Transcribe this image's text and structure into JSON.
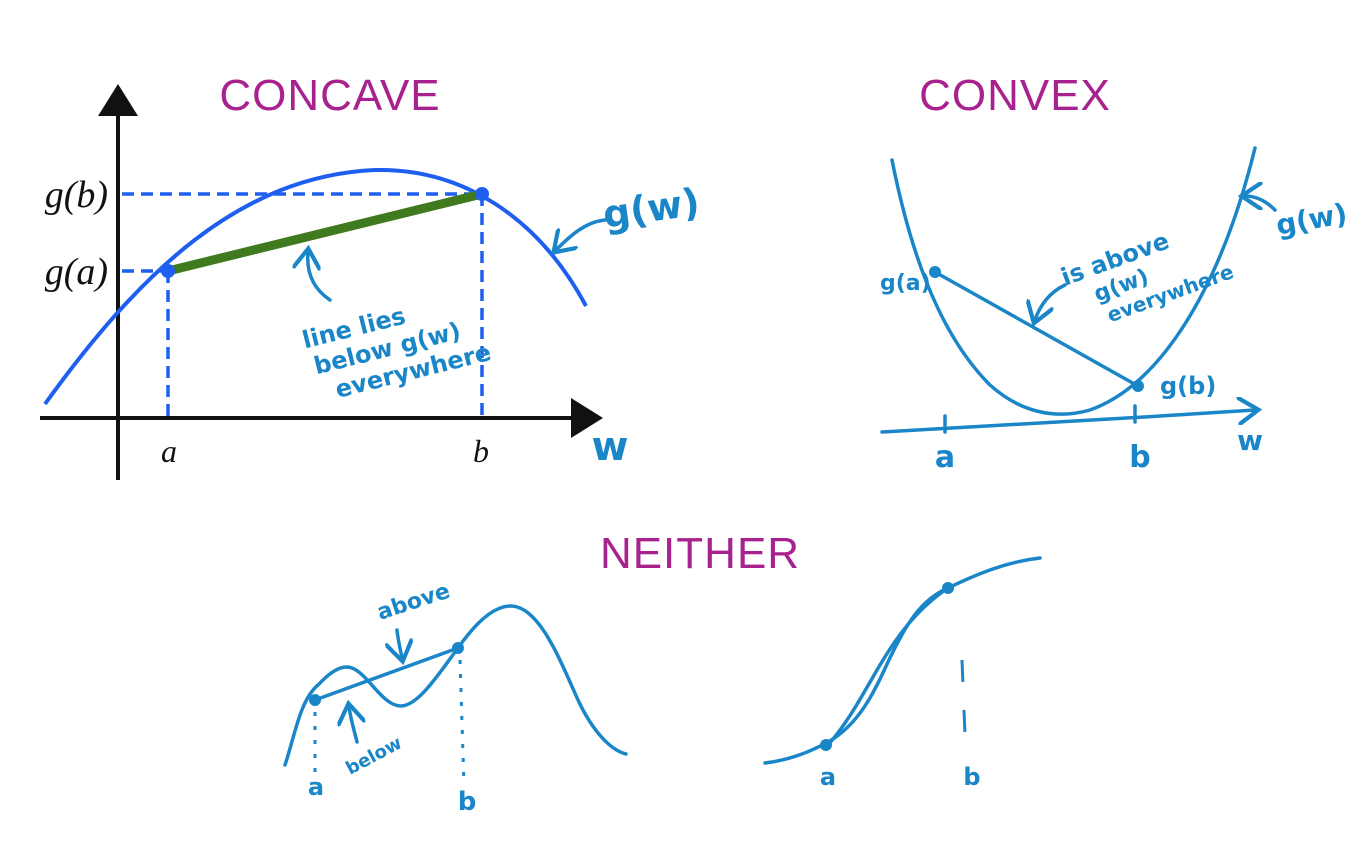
{
  "concave": {
    "title": "CONCAVE",
    "y_label_b": "g(b)",
    "y_label_a": "g(a)",
    "x_label_a": "a",
    "x_label_b": "b",
    "axis_label": "w",
    "curve_label": "g(w)",
    "note": [
      "line lies",
      "below g(w)",
      "everywhere"
    ]
  },
  "convex": {
    "title": "CONVEX",
    "point_a_label": "g(a)",
    "point_b_label": "g(b)",
    "curve_label": "g(w)",
    "axis_label": "w",
    "x_label_a": "a",
    "x_label_b": "b",
    "note": [
      "is above",
      "g(w)",
      "everywhere"
    ]
  },
  "neither": {
    "title": "NEITHER",
    "above_label": "above",
    "below_label": "below",
    "left_a": "a",
    "left_b": "b",
    "right_a": "a",
    "right_b": "b"
  },
  "colors": {
    "title": "#a8228f",
    "curve": "#1f5ff0",
    "chord": "#3f7a1f",
    "handwriting": "#1a86c8"
  }
}
